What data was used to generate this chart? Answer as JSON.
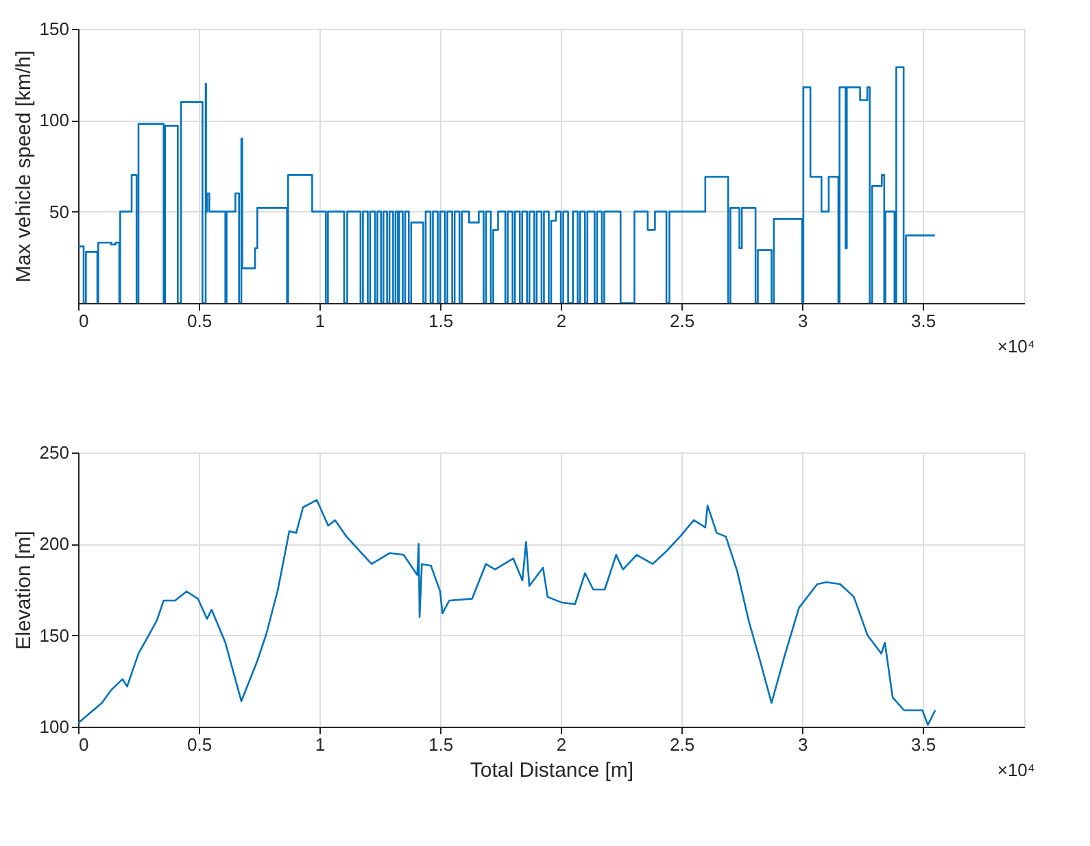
{
  "chart_data": [
    {
      "type": "step",
      "ylabel": "Max vehicle speed [km/h]",
      "annotations": [
        "×10⁴"
      ],
      "grid": true,
      "xlim": [
        0,
        3.92
      ],
      "ylim": [
        0,
        150
      ],
      "yticks": [
        50,
        100,
        150
      ],
      "xticks": [
        0,
        0.5,
        1,
        1.5,
        2,
        2.5,
        3,
        3.5
      ],
      "series": [
        {
          "color": "#0072bd",
          "x": [
            0,
            0.0227,
            0.0322,
            0.0795,
            0.0833,
            0.1364,
            0.1553,
            0.1705,
            0.1742,
            0.1894,
            0.2216,
            0.242,
            0.25,
            0.3542,
            0.36,
            0.4129,
            0.4262,
            0.5152,
            0.5284,
            0.53,
            0.5341,
            0.5436,
            0.6099,
            0.615,
            0.6515,
            0.6667,
            0.6762,
            0.68,
            0.733,
            0.7424,
            0.8656,
            0.87,
            0.9697,
            1.0265,
            1.035,
            1.1023,
            1.115,
            1.17,
            1.18,
            1.2,
            1.21,
            1.23,
            1.24,
            1.255,
            1.265,
            1.28,
            1.29,
            1.305,
            1.315,
            1.325,
            1.33,
            1.345,
            1.355,
            1.37,
            1.38,
            1.43,
            1.44,
            1.46,
            1.47,
            1.49,
            1.5,
            1.52,
            1.53,
            1.55,
            1.56,
            1.58,
            1.59,
            1.62,
            1.66,
            1.68,
            1.69,
            1.71,
            1.72,
            1.74,
            1.77,
            1.78,
            1.8,
            1.81,
            1.83,
            1.84,
            1.86,
            1.87,
            1.89,
            1.9,
            1.92,
            1.93,
            1.95,
            1.96,
            1.98,
            2.0,
            2.01,
            2.03,
            2.05,
            2.07,
            2.08,
            2.1,
            2.11,
            2.14,
            2.15,
            2.17,
            2.18,
            2.2475,
            2.305,
            2.36,
            2.39,
            2.4375,
            2.45,
            2.5986,
            2.6933,
            2.7027,
            2.74,
            2.75,
            2.8069,
            2.8163,
            2.8731,
            2.8826,
            3.0,
            3.005,
            3.0342,
            3.08,
            3.11,
            3.15,
            3.155,
            3.18,
            3.185,
            3.24,
            3.27,
            3.28,
            3.29,
            3.33,
            3.34,
            3.345,
            3.3826,
            3.39,
            3.4205,
            3.43,
            3.55
          ],
          "values": [
            31,
            0,
            28,
            0,
            33,
            32,
            33,
            0,
            50,
            50,
            70,
            0,
            98,
            0,
            97,
            0,
            110,
            0,
            120,
            50,
            60,
            50,
            0,
            50,
            60,
            0,
            90,
            19,
            30,
            52,
            0,
            70,
            50,
            0,
            50,
            0,
            50,
            0,
            50,
            0,
            50,
            0,
            50,
            0,
            50,
            0,
            50,
            0,
            50,
            0,
            50,
            0,
            50,
            0,
            44,
            0,
            50,
            0,
            50,
            0,
            50,
            0,
            50,
            0,
            50,
            0,
            50,
            44,
            50,
            0,
            50,
            0,
            40,
            50,
            0,
            50,
            0,
            50,
            0,
            50,
            0,
            50,
            0,
            50,
            0,
            50,
            0,
            45,
            50,
            0,
            50,
            0,
            50,
            0,
            50,
            0,
            50,
            0,
            50,
            0,
            50,
            0,
            50,
            40,
            50,
            0,
            50,
            69,
            0,
            52,
            30,
            52,
            0,
            29,
            0,
            46,
            0,
            118,
            69,
            50,
            69,
            0,
            118,
            30,
            118,
            111,
            118,
            0,
            64,
            70,
            0,
            50,
            0,
            129,
            0,
            37,
            37
          ]
        }
      ]
    },
    {
      "type": "line",
      "xlabel": "Total Distance [m]",
      "ylabel": "Elevation [m]",
      "annotations": [
        "×10⁴"
      ],
      "grid": true,
      "xlim": [
        0,
        3.92
      ],
      "ylim": [
        100,
        250
      ],
      "yticks": [
        100,
        150,
        200,
        250
      ],
      "xticks": [
        0,
        0.5,
        1,
        1.5,
        2,
        2.5,
        3,
        3.5
      ],
      "series": [
        {
          "color": "#0072bd",
          "x": [
            0,
            0.0985,
            0.1364,
            0.1837,
            0.2027,
            0.25,
            0.3258,
            0.3542,
            0.4015,
            0.4489,
            0.4962,
            0.5341,
            0.553,
            0.6099,
            0.6762,
            0.7424,
            0.7803,
            0.8277,
            0.875,
            0.9035,
            0.9319,
            0.9886,
            1.036,
            1.0644,
            1.1117,
            1.2159,
            1.2917,
            1.3485,
            1.4053,
            1.411,
            1.4148,
            1.4243,
            1.4621,
            1.5,
            1.5094,
            1.5378,
            1.6325,
            1.6894,
            1.7273,
            1.803,
            1.8409,
            1.856,
            1.8694,
            1.9262,
            1.9451,
            2.0019,
            2.0587,
            2.1004,
            2.1345,
            2.1818,
            2.2292,
            2.2576,
            2.3144,
            2.3807,
            2.4375,
            2.4943,
            2.5511,
            2.5986,
            2.608,
            2.6459,
            2.6838,
            2.7311,
            2.7785,
            2.8258,
            2.8731,
            2.93,
            2.9868,
            3.0626,
            3.1004,
            3.1573,
            3.2141,
            3.2709,
            3.3277,
            3.3428,
            3.375,
            3.4224,
            3.4981,
            3.5209,
            3.5512
          ],
          "values": [
            102,
            113,
            120,
            126,
            122,
            140,
            158,
            169,
            169,
            174,
            170,
            159,
            164,
            146,
            114,
            136,
            151,
            175,
            207,
            206,
            220,
            224,
            210,
            213,
            204,
            189,
            195,
            194,
            183,
            200,
            160,
            189,
            188,
            174,
            162,
            169,
            170,
            189,
            186,
            192,
            180,
            201,
            177,
            187,
            171,
            168,
            167,
            184,
            175,
            175,
            194,
            186,
            194,
            189,
            196,
            204,
            213,
            209,
            221,
            206,
            204,
            185,
            158,
            136,
            113,
            140,
            165,
            178,
            179,
            178,
            171,
            150,
            140,
            146,
            116,
            109,
            109,
            101,
            109
          ]
        }
      ]
    }
  ]
}
